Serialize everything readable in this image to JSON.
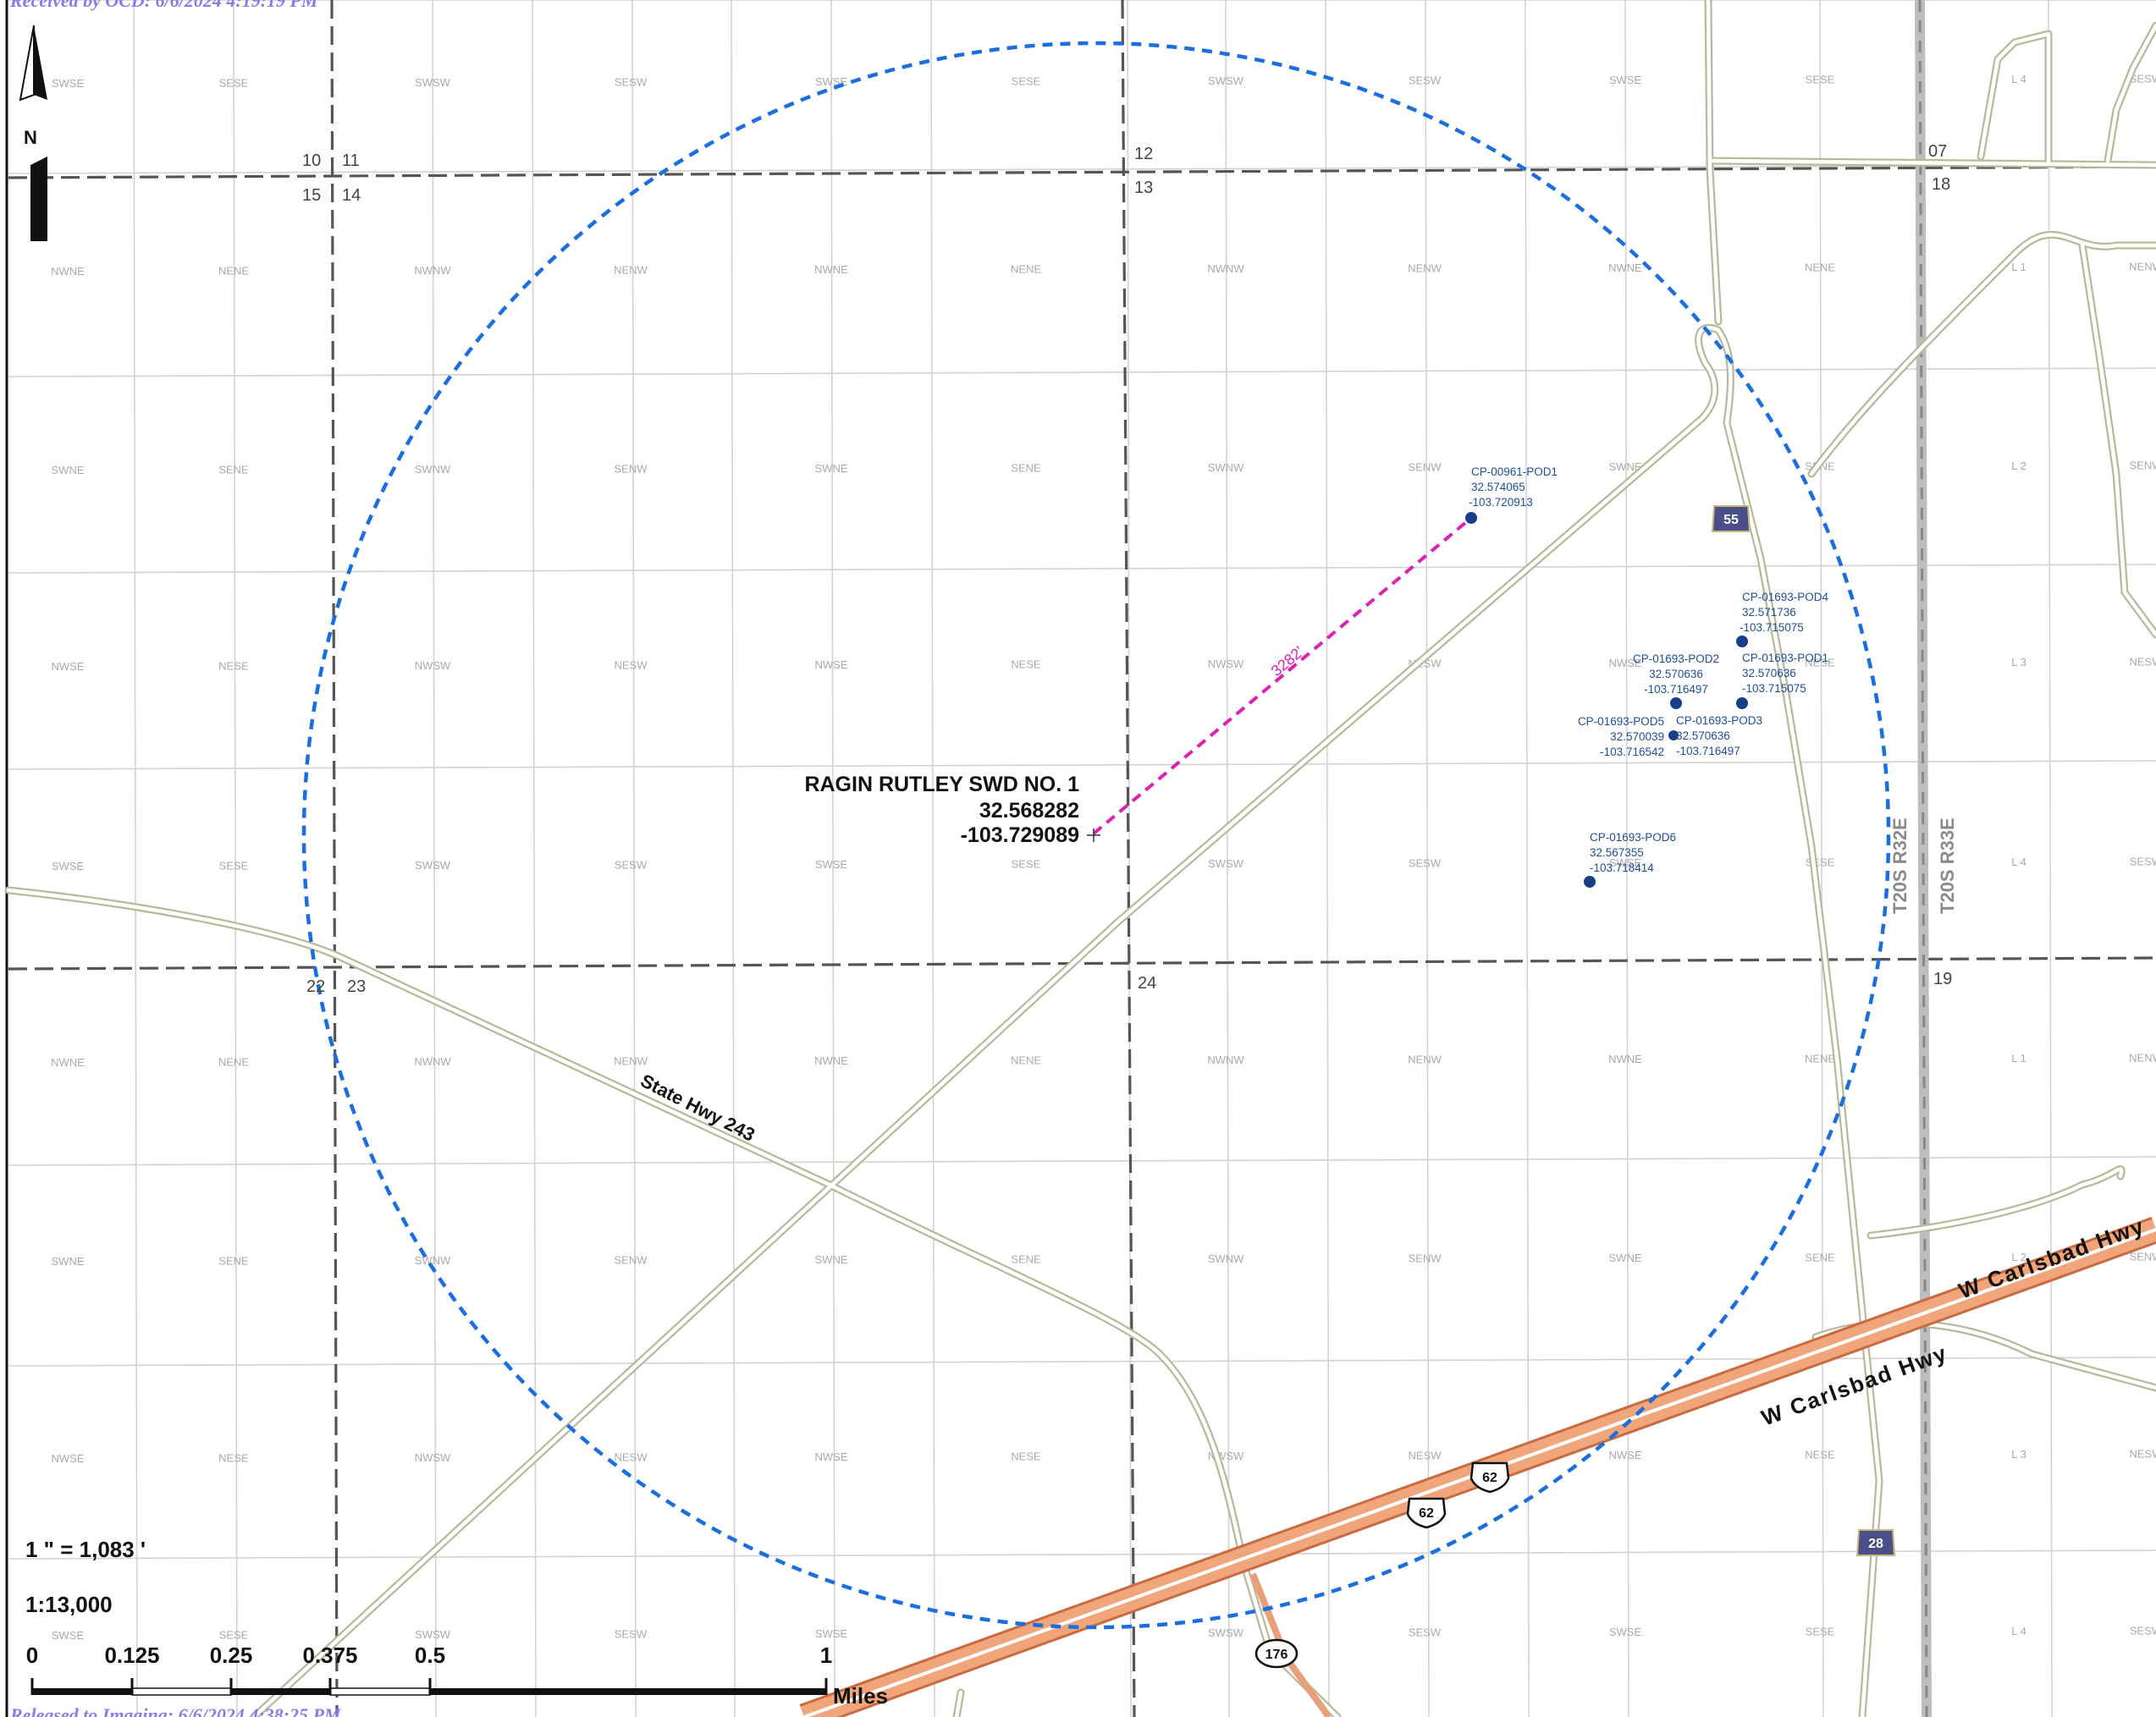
{
  "stamps": {
    "received": "Received by OCD: 6/6/2024 4:19:19 PM",
    "released": "Released to Imaging: 6/6/2024 4:38:25 PM"
  },
  "north_arrow": {
    "label": "N",
    "icon": "north-arrow-icon"
  },
  "site": {
    "name": "RAGIN RUTLEY SWD NO. 1",
    "lat": "32.568282",
    "lon": "-103.729089"
  },
  "distance_line": {
    "label": "3282'",
    "color": "#e020b0"
  },
  "radius_circle": {
    "color": "#1a6ee0"
  },
  "wells": [
    {
      "id": "CP-00961-POD1",
      "lat": "32.574065",
      "lon": "-103.720913"
    },
    {
      "id": "CP-01693-POD4",
      "lat": "32.571736",
      "lon": "-103.715075"
    },
    {
      "id": "CP-01693-POD2",
      "lat": "32.570636",
      "lon": "-103.716497"
    },
    {
      "id": "CP-01693-POD1",
      "lat": "32.570636",
      "lon": "-103.715075"
    },
    {
      "id": "CP-01693-POD5",
      "lat": "32.570039",
      "lon": "-103.716542"
    },
    {
      "id": "CP-01693-POD3",
      "lat": "32.570636",
      "lon": "-103.716497"
    },
    {
      "id": "CP-01693-POD6",
      "lat": "32.567355",
      "lon": "-103.718414"
    }
  ],
  "section_numbers": [
    "10",
    "11",
    "15",
    "14",
    "12",
    "13",
    "07",
    "18",
    "22",
    "23",
    "24",
    "19"
  ],
  "township_labels": [
    "T20S R32E",
    "T20S R33E"
  ],
  "quarter_labels": [
    [
      "SWSE",
      "SESE",
      "SWSW",
      "SESW",
      "SWSE",
      "SESE",
      "SWSW",
      "SESW",
      "SWSE",
      "SESE",
      "L 4",
      "SESW"
    ],
    [
      "NWNE",
      "NENE",
      "NWNW",
      "NENW",
      "NWNE",
      "NENE",
      "NWNW",
      "NENW",
      "NWNE",
      "NENE",
      "L 1",
      "NENW"
    ],
    [
      "SWNE",
      "SENE",
      "SWNW",
      "SENW",
      "SWNE",
      "SENE",
      "SWNW",
      "SENW",
      "SWNE",
      "SENE",
      "L 2",
      "SENW"
    ],
    [
      "NWSE",
      "NESE",
      "NWSW",
      "NESW",
      "NWSE",
      "NESE",
      "NWSW",
      "NESW",
      "NWSE",
      "NESE",
      "L 3",
      "NESW"
    ],
    [
      "SWSE",
      "SESE",
      "SWSW",
      "SESW",
      "SWSE",
      "SESE",
      "SWSW",
      "SESW",
      "SWSE",
      "SESE",
      "L 4",
      "SESW"
    ],
    [
      "NWNE",
      "NENE",
      "NWNW",
      "NENW",
      "NWNE",
      "NENE",
      "NWNW",
      "NENW",
      "NWNE",
      "NENE",
      "L 1",
      "NENW"
    ],
    [
      "SWNE",
      "SENE",
      "SWNW",
      "SENW",
      "SWNE",
      "SENE",
      "SWNW",
      "SENW",
      "SWNE",
      "SENE",
      "L 2",
      "SENW"
    ],
    [
      "NWSE",
      "NESE",
      "NWSW",
      "NESW",
      "NWSE",
      "NESE",
      "NWSW",
      "NESW",
      "NWSE",
      "NESE",
      "L 3",
      "NESW"
    ],
    [
      "SWSE",
      "SESE",
      "SWSW",
      "SESW",
      "SWSE",
      "SESE",
      "SWSW",
      "SESW",
      "SWSE",
      "SESE",
      "L 4",
      "SESW"
    ]
  ],
  "roads": {
    "state_hwy": "State Hwy 243",
    "carlsbad_1": "W Carlsbad Hwy",
    "carlsbad_2": "W Carlsbad Hwy"
  },
  "shields": {
    "us62a": "62",
    "us62b": "62",
    "nm176": "176",
    "sr55": "55",
    "sr28": "28"
  },
  "scale": {
    "ratio_text": "1 \" = 1,083 '",
    "fraction": "1:13,000",
    "ticks": [
      "0",
      "0.125",
      "0.25",
      "0.375",
      "0.5",
      "1"
    ],
    "unit": "Miles"
  }
}
